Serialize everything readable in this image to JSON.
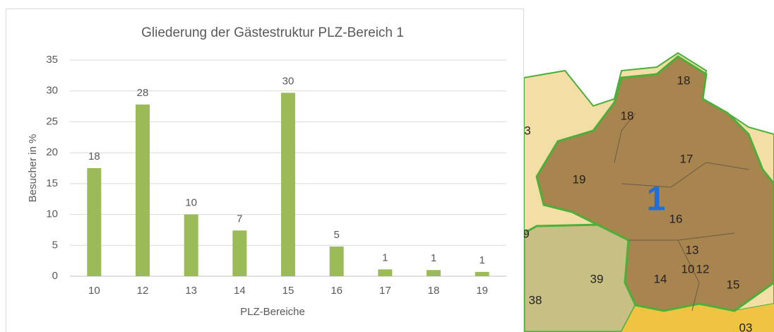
{
  "chart_data": {
    "type": "bar",
    "title": "Gliederung der Gästestruktur PLZ-Bereich 1",
    "x_label": "PLZ-Bereiche",
    "y_label": "Besucher in %",
    "categories": [
      "10",
      "12",
      "13",
      "14",
      "15",
      "16",
      "17",
      "18",
      "19"
    ],
    "values": [
      17.5,
      27.8,
      10,
      7.4,
      29.7,
      4.8,
      1.1,
      1.0,
      0.7
    ],
    "value_labels": [
      "18",
      "28",
      "10",
      "7",
      "30",
      "5",
      "1",
      "1",
      "1"
    ],
    "color": "#9bbb59",
    "ylim": [
      0,
      35
    ],
    "yticks": [
      0,
      5,
      10,
      15,
      20,
      25,
      30,
      35
    ],
    "grid": true
  },
  "map": {
    "labels": [
      "18",
      "18",
      "17",
      "19",
      "1",
      "16",
      "13",
      "10",
      "12",
      "14",
      "15",
      "39",
      "38",
      "3",
      "9",
      "03"
    ]
  }
}
